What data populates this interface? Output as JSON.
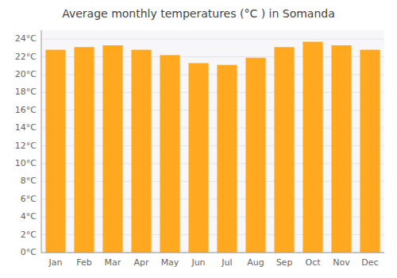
{
  "chart_data": {
    "type": "bar",
    "title": "Average monthly temperatures (°C ) in Somanda",
    "categories": [
      "Jan",
      "Feb",
      "Mar",
      "Apr",
      "May",
      "Jun",
      "Jul",
      "Aug",
      "Sep",
      "Oct",
      "Nov",
      "Dec"
    ],
    "values": [
      22.8,
      23.1,
      23.3,
      22.8,
      22.2,
      21.3,
      21.1,
      21.9,
      23.1,
      23.7,
      23.3,
      22.8
    ],
    "color": "#FFA820",
    "ylim": [
      0,
      25
    ],
    "yticks": [
      {
        "value": 0,
        "label": "0°C"
      },
      {
        "value": 2,
        "label": "2°C"
      },
      {
        "value": 4,
        "label": "4°C"
      },
      {
        "value": 6,
        "label": "6°C"
      },
      {
        "value": 8,
        "label": "8°C"
      },
      {
        "value": 10,
        "label": "10°C"
      },
      {
        "value": 12,
        "label": "12°C"
      },
      {
        "value": 14,
        "label": "14°C"
      },
      {
        "value": 16,
        "label": "16°C"
      },
      {
        "value": 18,
        "label": "18°C"
      },
      {
        "value": 20,
        "label": "20°C"
      },
      {
        "value": 22,
        "label": "22°C"
      },
      {
        "value": 24,
        "label": "24°C"
      }
    ],
    "grid": true
  }
}
